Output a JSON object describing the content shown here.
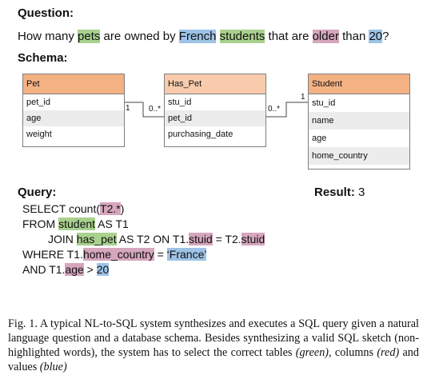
{
  "question": {
    "label": "Question:",
    "parts": [
      "How many ",
      "pets",
      " are owned by ",
      "French",
      " ",
      "students",
      " that are ",
      "older",
      " than ",
      "20",
      "?"
    ]
  },
  "schema_label": "Schema:",
  "tables": {
    "pet": {
      "name": "Pet",
      "columns": [
        "pet_id",
        "age",
        "weight"
      ]
    },
    "has_pet": {
      "name": "Has_Pet",
      "columns": [
        "stu_id",
        "pet_id",
        "purchasing_date"
      ]
    },
    "student": {
      "name": "Student",
      "columns": [
        "stu_id",
        "name",
        "age",
        "home_country"
      ]
    }
  },
  "relations": {
    "pet_haspet": {
      "left": "1",
      "right": "0..*"
    },
    "haspet_student": {
      "left": "0..*",
      "right": "1"
    }
  },
  "query": {
    "label": "Query:",
    "line1": [
      "SELECT count(",
      "T2.*",
      ")"
    ],
    "line2": [
      "FROM ",
      "student",
      " AS T1"
    ],
    "line3": [
      "JOIN ",
      "has_pet",
      " AS T2 ON T1.",
      "stuid",
      " = T2.",
      "stuid"
    ],
    "line4": [
      "WHERE T1.",
      "home_country",
      " = ",
      "‘France’"
    ],
    "line5": [
      "AND T1.",
      "age",
      " > ",
      "20"
    ]
  },
  "result": {
    "label": "Result:",
    "value": "3"
  },
  "caption": {
    "prefix": "Fig. 1.  A typical NL-to-SQL system synthesizes and executes a SQL query given a natural language question and a database schema. Besides synthesizing a valid SQL sketch (non-highlighted words), the system has to select the correct tables ",
    "green": "(green)",
    "mid1": ", columns ",
    "red": "(red)",
    "mid2": " and values ",
    "blue": "(blue)"
  },
  "colors": {
    "green": "#a9d18e",
    "blue": "#9dc3e6",
    "red": "#d5a6bd",
    "orange_header": "#f4b183",
    "peach_header": "#f8cbad"
  }
}
